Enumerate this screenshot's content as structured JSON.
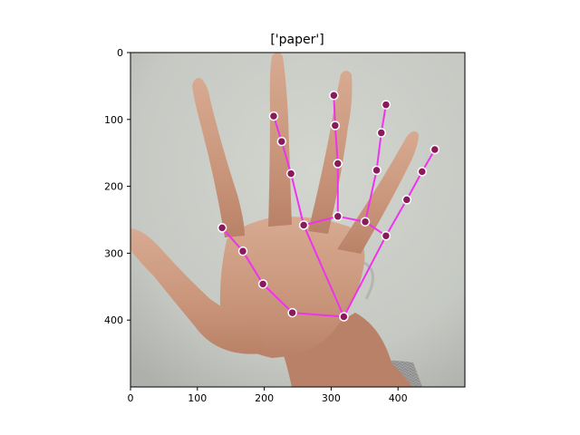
{
  "chart_data": {
    "type": "scatter",
    "title": "['paper']",
    "xlabel": "",
    "ylabel": "",
    "xlim": [
      0,
      500
    ],
    "ylim": [
      500,
      0
    ],
    "x_ticks": [
      0,
      100,
      200,
      300,
      400
    ],
    "y_ticks": [
      0,
      100,
      200,
      300,
      400
    ],
    "grid": false,
    "background": "photo of an open hand (palm toward camera, fingers spread) on a light grey wall",
    "colors": {
      "skeleton": "#ee33ee",
      "keypoint_fill": "#8b1a5a",
      "keypoint_ring": "#ffffff"
    },
    "keypoints": [
      {
        "x": 319,
        "y": 395
      },
      {
        "x": 242,
        "y": 389
      },
      {
        "x": 198,
        "y": 346
      },
      {
        "x": 168,
        "y": 297
      },
      {
        "x": 137,
        "y": 262
      },
      {
        "x": 259,
        "y": 258
      },
      {
        "x": 240,
        "y": 181
      },
      {
        "x": 226,
        "y": 133
      },
      {
        "x": 214,
        "y": 95
      },
      {
        "x": 310,
        "y": 245
      },
      {
        "x": 310,
        "y": 166
      },
      {
        "x": 306,
        "y": 109
      },
      {
        "x": 304,
        "y": 64
      },
      {
        "x": 351,
        "y": 253
      },
      {
        "x": 368,
        "y": 176
      },
      {
        "x": 375,
        "y": 120
      },
      {
        "x": 382,
        "y": 78
      },
      {
        "x": 382,
        "y": 274
      },
      {
        "x": 413,
        "y": 220
      },
      {
        "x": 436,
        "y": 178
      },
      {
        "x": 455,
        "y": 145
      }
    ],
    "connections": [
      [
        0,
        1
      ],
      [
        1,
        2
      ],
      [
        2,
        3
      ],
      [
        3,
        4
      ],
      [
        0,
        5
      ],
      [
        5,
        6
      ],
      [
        6,
        7
      ],
      [
        7,
        8
      ],
      [
        5,
        9
      ],
      [
        9,
        10
      ],
      [
        10,
        11
      ],
      [
        11,
        12
      ],
      [
        9,
        13
      ],
      [
        13,
        14
      ],
      [
        14,
        15
      ],
      [
        15,
        16
      ],
      [
        13,
        17
      ],
      [
        17,
        18
      ],
      [
        18,
        19
      ],
      [
        19,
        20
      ],
      [
        0,
        17
      ]
    ]
  }
}
